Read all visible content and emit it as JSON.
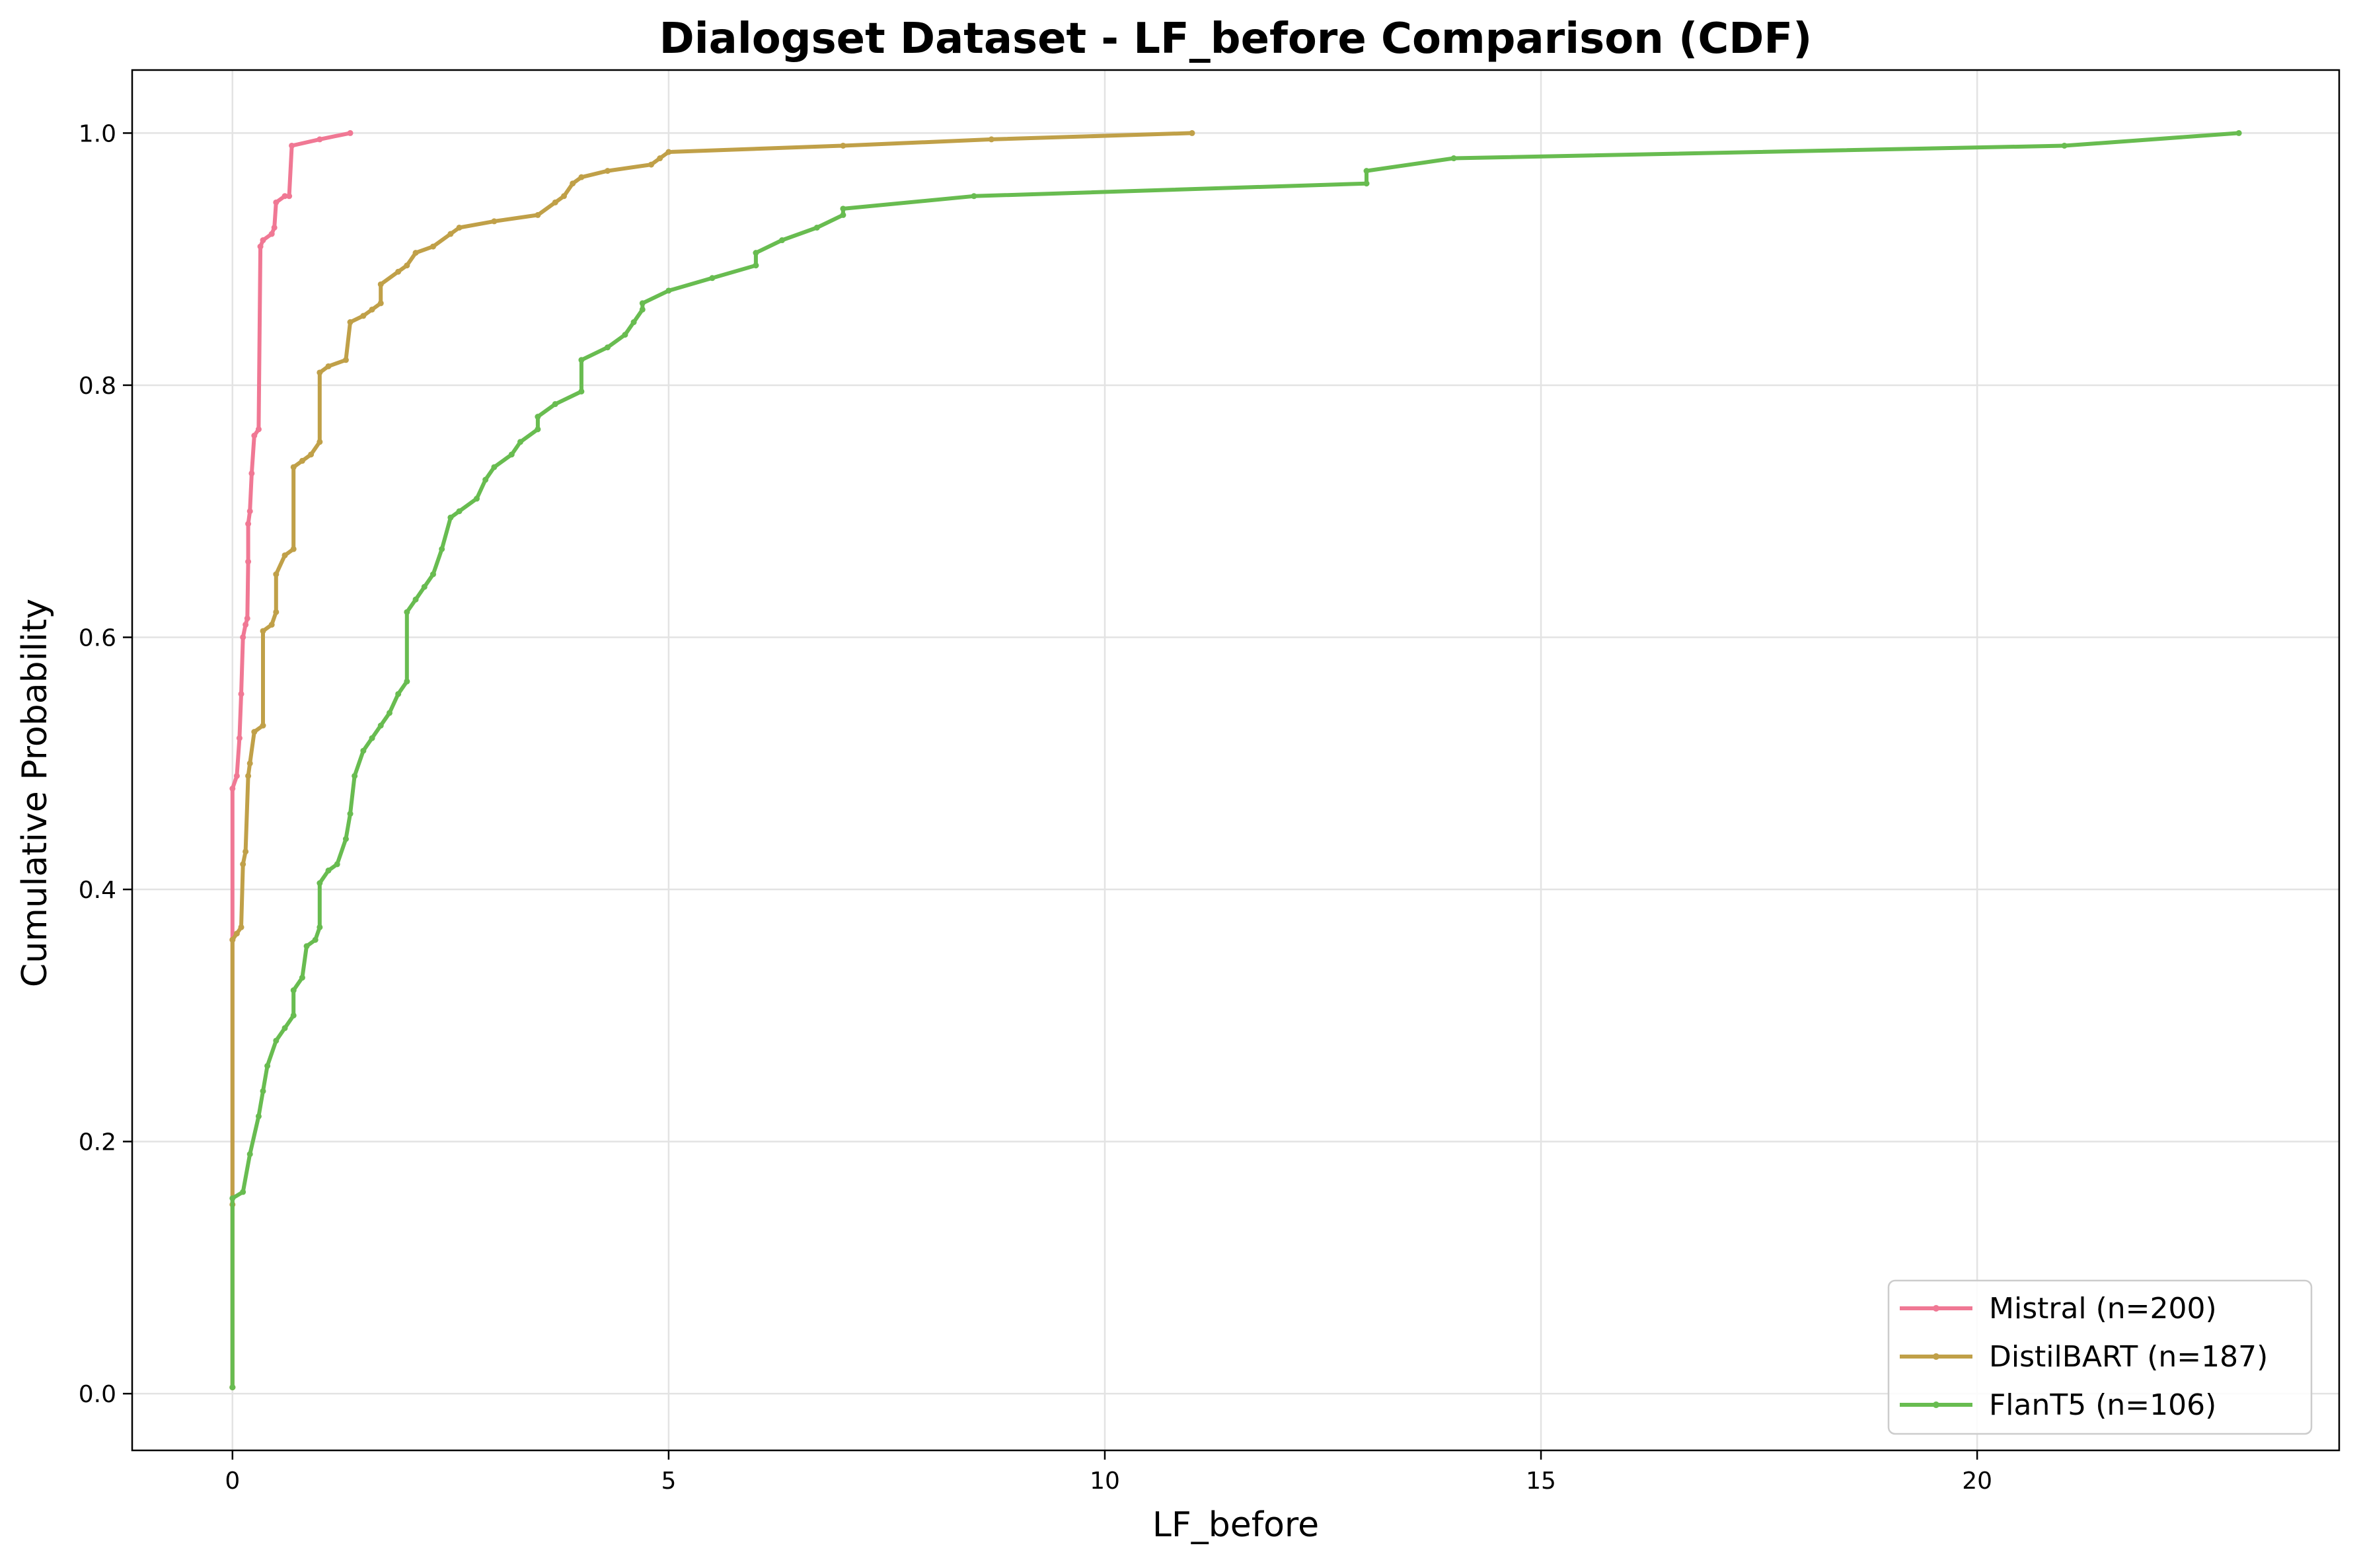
{
  "chart_data": {
    "type": "line",
    "title": "Dialogset Dataset - LF_before Comparison (CDF)",
    "xlabel": "LF_before",
    "ylabel": "Cumulative Probability",
    "xlim": [
      -1.15,
      24.15
    ],
    "ylim": [
      -0.045,
      1.05
    ],
    "xticks": [
      0,
      5,
      10,
      15,
      20
    ],
    "yticks": [
      0.0,
      0.2,
      0.4,
      0.6,
      0.8,
      1.0
    ],
    "xtick_labels": [
      "0",
      "5",
      "10",
      "15",
      "20"
    ],
    "ytick_labels": [
      "0.0",
      "0.2",
      "0.4",
      "0.6",
      "0.8",
      "1.0"
    ],
    "grid": true,
    "legend_position": "lower-right",
    "series": [
      {
        "name": "Mistral (n=200)",
        "color": "#f07894",
        "points": [
          [
            0,
            0.005
          ],
          [
            0,
            0.36
          ],
          [
            0,
            0.48
          ],
          [
            0.05,
            0.49
          ],
          [
            0.08,
            0.52
          ],
          [
            0.1,
            0.555
          ],
          [
            0.12,
            0.6
          ],
          [
            0.15,
            0.61
          ],
          [
            0.17,
            0.615
          ],
          [
            0.18,
            0.66
          ],
          [
            0.18,
            0.69
          ],
          [
            0.2,
            0.7
          ],
          [
            0.22,
            0.73
          ],
          [
            0.25,
            0.76
          ],
          [
            0.3,
            0.765
          ],
          [
            0.32,
            0.91
          ],
          [
            0.35,
            0.915
          ],
          [
            0.45,
            0.92
          ],
          [
            0.48,
            0.925
          ],
          [
            0.5,
            0.945
          ],
          [
            0.6,
            0.95
          ],
          [
            0.65,
            0.95
          ],
          [
            0.68,
            0.99
          ],
          [
            1.0,
            0.995
          ],
          [
            1.35,
            1.0
          ]
        ]
      },
      {
        "name": "DistilBART (n=187)",
        "color": "#c0a048",
        "points": [
          [
            0,
            0.005
          ],
          [
            0,
            0.15
          ],
          [
            0,
            0.36
          ],
          [
            0.05,
            0.365
          ],
          [
            0.1,
            0.37
          ],
          [
            0.12,
            0.42
          ],
          [
            0.15,
            0.43
          ],
          [
            0.18,
            0.49
          ],
          [
            0.2,
            0.5
          ],
          [
            0.25,
            0.525
          ],
          [
            0.35,
            0.53
          ],
          [
            0.35,
            0.605
          ],
          [
            0.45,
            0.61
          ],
          [
            0.5,
            0.62
          ],
          [
            0.5,
            0.65
          ],
          [
            0.6,
            0.665
          ],
          [
            0.7,
            0.67
          ],
          [
            0.7,
            0.735
          ],
          [
            0.8,
            0.74
          ],
          [
            0.9,
            0.745
          ],
          [
            1.0,
            0.755
          ],
          [
            1.0,
            0.81
          ],
          [
            1.1,
            0.815
          ],
          [
            1.3,
            0.82
          ],
          [
            1.35,
            0.85
          ],
          [
            1.5,
            0.855
          ],
          [
            1.6,
            0.86
          ],
          [
            1.7,
            0.865
          ],
          [
            1.7,
            0.88
          ],
          [
            1.9,
            0.89
          ],
          [
            2.0,
            0.895
          ],
          [
            2.1,
            0.905
          ],
          [
            2.3,
            0.91
          ],
          [
            2.5,
            0.92
          ],
          [
            2.6,
            0.925
          ],
          [
            3.0,
            0.93
          ],
          [
            3.5,
            0.935
          ],
          [
            3.7,
            0.945
          ],
          [
            3.8,
            0.95
          ],
          [
            3.9,
            0.96
          ],
          [
            4.0,
            0.965
          ],
          [
            4.3,
            0.97
          ],
          [
            4.8,
            0.975
          ],
          [
            4.9,
            0.98
          ],
          [
            5.0,
            0.985
          ],
          [
            7.0,
            0.99
          ],
          [
            8.7,
            0.995
          ],
          [
            11.0,
            1.0
          ]
        ]
      },
      {
        "name": "FlanT5 (n=106)",
        "color": "#68bc50",
        "points": [
          [
            0,
            0.005
          ],
          [
            0,
            0.155
          ],
          [
            0.12,
            0.16
          ],
          [
            0.2,
            0.19
          ],
          [
            0.3,
            0.22
          ],
          [
            0.35,
            0.24
          ],
          [
            0.4,
            0.26
          ],
          [
            0.5,
            0.28
          ],
          [
            0.6,
            0.29
          ],
          [
            0.7,
            0.3
          ],
          [
            0.7,
            0.32
          ],
          [
            0.8,
            0.33
          ],
          [
            0.85,
            0.355
          ],
          [
            0.95,
            0.36
          ],
          [
            1.0,
            0.37
          ],
          [
            1.0,
            0.405
          ],
          [
            1.1,
            0.415
          ],
          [
            1.2,
            0.42
          ],
          [
            1.3,
            0.44
          ],
          [
            1.35,
            0.46
          ],
          [
            1.4,
            0.49
          ],
          [
            1.5,
            0.51
          ],
          [
            1.6,
            0.52
          ],
          [
            1.7,
            0.53
          ],
          [
            1.8,
            0.54
          ],
          [
            1.9,
            0.555
          ],
          [
            2.0,
            0.565
          ],
          [
            2.0,
            0.62
          ],
          [
            2.1,
            0.63
          ],
          [
            2.2,
            0.64
          ],
          [
            2.3,
            0.65
          ],
          [
            2.4,
            0.67
          ],
          [
            2.5,
            0.695
          ],
          [
            2.6,
            0.7
          ],
          [
            2.8,
            0.71
          ],
          [
            2.9,
            0.725
          ],
          [
            3.0,
            0.735
          ],
          [
            3.2,
            0.745
          ],
          [
            3.3,
            0.755
          ],
          [
            3.5,
            0.765
          ],
          [
            3.5,
            0.775
          ],
          [
            3.7,
            0.785
          ],
          [
            4.0,
            0.795
          ],
          [
            4.0,
            0.82
          ],
          [
            4.3,
            0.83
          ],
          [
            4.5,
            0.84
          ],
          [
            4.6,
            0.85
          ],
          [
            4.7,
            0.86
          ],
          [
            4.7,
            0.865
          ],
          [
            5.0,
            0.875
          ],
          [
            5.5,
            0.885
          ],
          [
            6.0,
            0.895
          ],
          [
            6.0,
            0.905
          ],
          [
            6.3,
            0.915
          ],
          [
            6.7,
            0.925
          ],
          [
            7.0,
            0.935
          ],
          [
            7.0,
            0.94
          ],
          [
            8.5,
            0.95
          ],
          [
            13.0,
            0.96
          ],
          [
            13.0,
            0.97
          ],
          [
            14.0,
            0.98
          ],
          [
            21.0,
            0.99
          ],
          [
            23.0,
            1.0
          ]
        ]
      }
    ]
  }
}
